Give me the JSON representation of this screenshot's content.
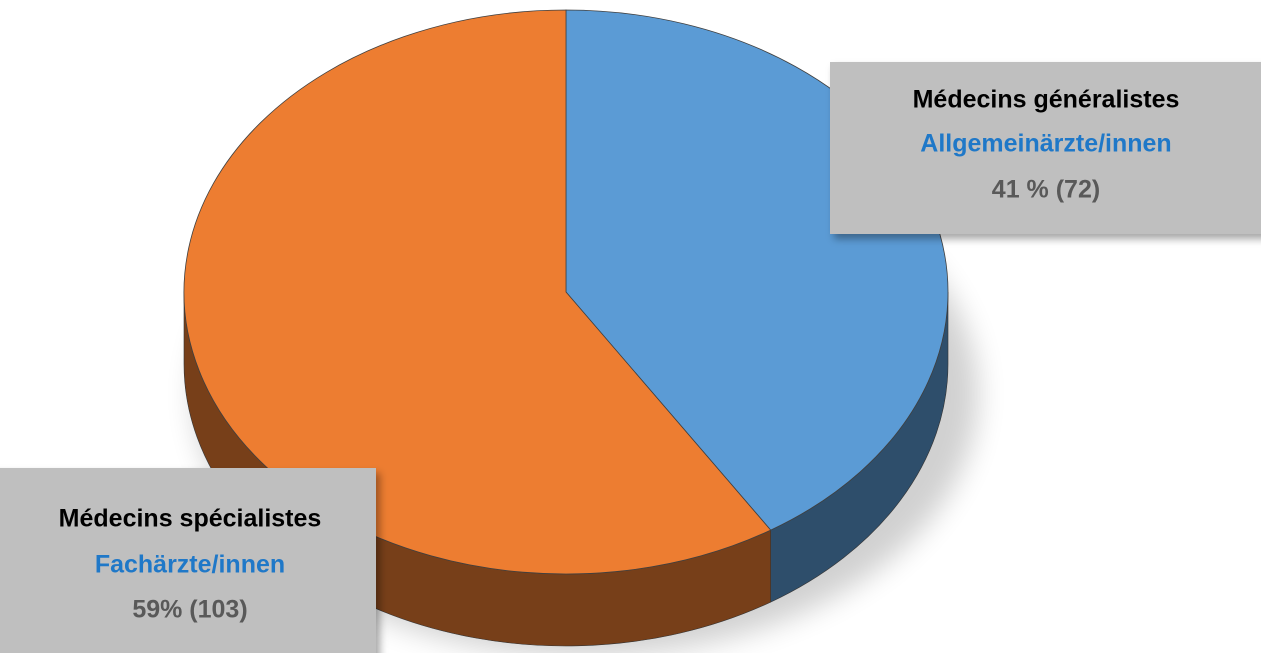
{
  "chart_data": {
    "type": "pie",
    "categories": [
      "Médecins généralistes",
      "Médecins spécialistes"
    ],
    "category_translations": [
      "Allgemeinärzte/innen",
      "Fachärzte/innen"
    ],
    "values": [
      41,
      59
    ],
    "value_labels": [
      "41 % (72)",
      "59% (103)"
    ],
    "colors": [
      "#5b9bd5",
      "#ed7d31"
    ],
    "three_d": true
  }
}
